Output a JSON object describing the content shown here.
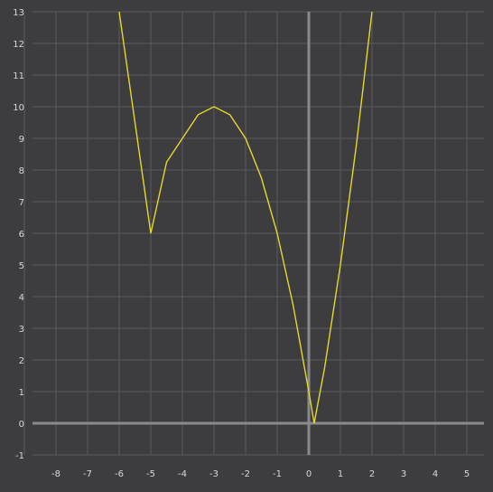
{
  "chart_data": {
    "type": "line",
    "title": "",
    "xlabel": "",
    "ylabel": "",
    "xlim": [
      -9,
      5.5
    ],
    "ylim": [
      -1,
      13
    ],
    "grid": true,
    "x_ticks": [
      -8,
      -7,
      -6,
      -5,
      -4,
      -3,
      -2,
      -1,
      0,
      1,
      2,
      3,
      4,
      5
    ],
    "y_ticks": [
      -1,
      0,
      1,
      2,
      3,
      4,
      5,
      6,
      7,
      8,
      9,
      10,
      11,
      12,
      13
    ],
    "series": [
      {
        "color": "#e6d829",
        "x": [
          -6,
          -5.5,
          -5,
          -4.5,
          -4,
          -3.5,
          -3,
          -2.5,
          -2,
          -1.5,
          -1,
          -0.5,
          0,
          0.17,
          0.5,
          1,
          1.5,
          2
        ],
        "y": [
          13,
          9.5,
          6,
          8.25,
          9,
          9.75,
          10,
          9.75,
          9,
          7.75,
          6,
          3.75,
          1,
          0,
          1.75,
          5,
          8.75,
          13
        ]
      }
    ]
  }
}
